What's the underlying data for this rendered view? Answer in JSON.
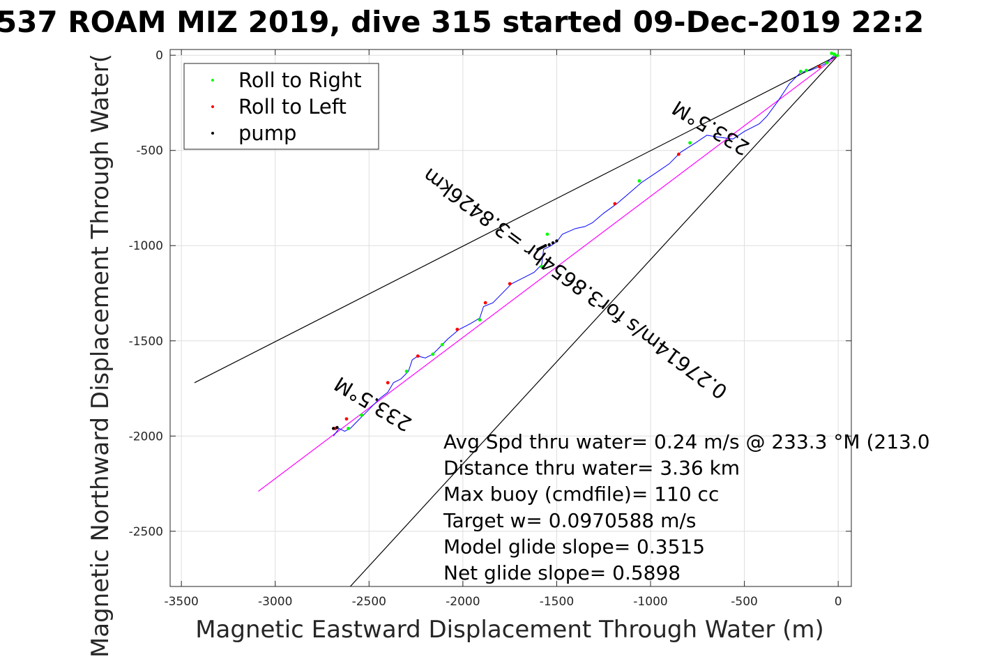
{
  "chart_data": {
    "type": "scatter",
    "title": "537 ROAM MIZ 2019, dive 315 started 09-Dec-2019 22:2",
    "xlabel": "Magnetic Eastward Displacement Through Water (m)",
    "ylabel": "Magnetic Northward Displacement Through Water(",
    "xlim": [
      -3560,
      70
    ],
    "ylim": [
      -2790,
      30
    ],
    "xticks": [
      -3500,
      -3000,
      -2500,
      -2000,
      -1500,
      -1000,
      -500,
      0
    ],
    "yticks": [
      0,
      -500,
      -1000,
      -1500,
      -2000,
      -2500
    ],
    "grid": true,
    "legend_position": "top-left",
    "legend": [
      {
        "label": "Roll to Right",
        "color": "#00ff00"
      },
      {
        "label": "Roll to Left",
        "color": "#ff0000"
      },
      {
        "label": "pump",
        "color": "#000000"
      }
    ],
    "track": {
      "color": "#0000ff",
      "points": [
        [
          0,
          0
        ],
        [
          -20,
          -2
        ],
        [
          -30,
          -8
        ],
        [
          -60,
          -40
        ],
        [
          -100,
          -60
        ],
        [
          -150,
          -80
        ],
        [
          -200,
          -90
        ],
        [
          -260,
          -150
        ],
        [
          -320,
          -240
        ],
        [
          -380,
          -320
        ],
        [
          -420,
          -360
        ],
        [
          -500,
          -400
        ],
        [
          -560,
          -440
        ],
        [
          -640,
          -430
        ],
        [
          -700,
          -420
        ],
        [
          -760,
          -460
        ],
        [
          -840,
          -510
        ],
        [
          -900,
          -570
        ],
        [
          -960,
          -610
        ],
        [
          -1050,
          -670
        ],
        [
          -1120,
          -730
        ],
        [
          -1180,
          -780
        ],
        [
          -1250,
          -830
        ],
        [
          -1310,
          -880
        ],
        [
          -1350,
          -900
        ],
        [
          -1400,
          -910
        ],
        [
          -1470,
          -940
        ],
        [
          -1500,
          -980
        ],
        [
          -1530,
          -1000
        ],
        [
          -1570,
          -1020
        ],
        [
          -1580,
          -1100
        ],
        [
          -1620,
          -1140
        ],
        [
          -1680,
          -1170
        ],
        [
          -1740,
          -1200
        ],
        [
          -1800,
          -1260
        ],
        [
          -1840,
          -1300
        ],
        [
          -1890,
          -1320
        ],
        [
          -1910,
          -1380
        ],
        [
          -1960,
          -1410
        ],
        [
          -2020,
          -1440
        ],
        [
          -2080,
          -1490
        ],
        [
          -2120,
          -1530
        ],
        [
          -2160,
          -1570
        ],
        [
          -2200,
          -1590
        ],
        [
          -2240,
          -1580
        ],
        [
          -2270,
          -1600
        ],
        [
          -2290,
          -1660
        ],
        [
          -2330,
          -1700
        ],
        [
          -2370,
          -1720
        ],
        [
          -2400,
          -1770
        ],
        [
          -2440,
          -1800
        ],
        [
          -2490,
          -1850
        ],
        [
          -2530,
          -1890
        ],
        [
          -2560,
          -1920
        ],
        [
          -2600,
          -1960
        ],
        [
          -2630,
          -1975
        ],
        [
          -2660,
          -1960
        ],
        [
          -2690,
          -2000
        ]
      ]
    },
    "series": [
      {
        "name": "Roll to Right",
        "color": "#00ff00",
        "points": [
          [
            -5,
            -2
          ],
          [
            -20,
            5
          ],
          [
            -35,
            10
          ],
          [
            -60,
            -40
          ],
          [
            -170,
            -80
          ],
          [
            -200,
            -85
          ],
          [
            -790,
            -460
          ],
          [
            -1060,
            -660
          ],
          [
            -1550,
            -940
          ],
          [
            -1580,
            -1110
          ],
          [
            -1910,
            -1390
          ],
          [
            -2110,
            -1520
          ],
          [
            -2160,
            -1570
          ],
          [
            -2300,
            -1660
          ],
          [
            -2540,
            -1890
          ],
          [
            -2610,
            -1960
          ]
        ]
      },
      {
        "name": "Roll to Left",
        "color": "#ff0000",
        "points": [
          [
            -100,
            -60
          ],
          [
            -850,
            -520
          ],
          [
            -1190,
            -780
          ],
          [
            -1750,
            -1200
          ],
          [
            -1880,
            -1300
          ],
          [
            -2030,
            -1440
          ],
          [
            -2240,
            -1580
          ],
          [
            -2400,
            -1720
          ],
          [
            -2620,
            -1910
          ],
          [
            -2680,
            -1960
          ]
        ]
      },
      {
        "name": "pump",
        "color": "#000000",
        "points": [
          [
            -1600,
            -1020
          ],
          [
            -1580,
            -1010
          ],
          [
            -1560,
            -1000
          ],
          [
            -1540,
            -995
          ],
          [
            -1520,
            -985
          ],
          [
            -1500,
            -975
          ],
          [
            -1590,
            -1015
          ],
          [
            -1570,
            -1005
          ],
          [
            -2690,
            -1960
          ],
          [
            -2670,
            -1955
          ]
        ]
      }
    ],
    "lines": [
      {
        "name": "heading line left",
        "color": "#000000",
        "points": [
          [
            0,
            0
          ],
          [
            -3430,
            -1720
          ]
        ]
      },
      {
        "name": "heading line right",
        "color": "#000000",
        "points": [
          [
            0,
            0
          ],
          [
            -2600,
            -2790
          ]
        ]
      },
      {
        "name": "net track",
        "color": "#ff00ff",
        "points": [
          [
            0,
            0
          ],
          [
            -3090,
            -2290
          ]
        ]
      }
    ],
    "rotated_labels": [
      {
        "text": "233.5°M",
        "at": [
          -660,
          -350
        ],
        "rotation": 211
      },
      {
        "text": "233.5°M",
        "at": [
          -2460,
          -1800
        ],
        "rotation": 211
      },
      {
        "text": "0.27614m/s for3.8654hr =3.8426km",
        "at": [
          -1380,
          -1170
        ],
        "rotation": 216.5
      }
    ],
    "annotations": [
      "Avg Spd thru water=  0.24 m/s @ 233.3 °M (213.0",
      "Distance thru water=  3.36 km",
      "Max buoy (cmdfile)= 110 cc",
      "Target w= 0.0970588 m/s",
      "Model glide slope= 0.3515",
      "Net glide slope= 0.5898"
    ]
  }
}
